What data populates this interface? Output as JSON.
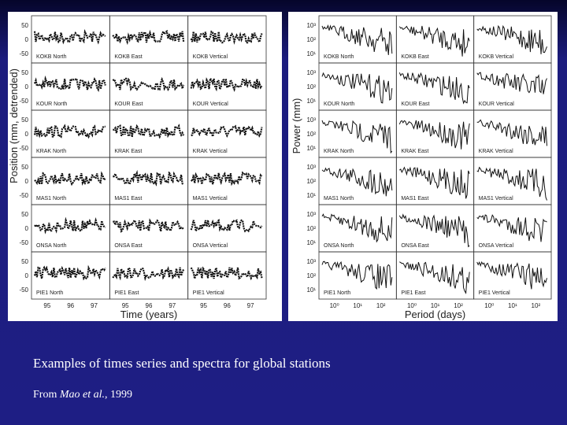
{
  "left_figure": {
    "y_axis_label": "Position (mm, detrended)",
    "x_axis_label": "Time (years)",
    "yticks": [
      "50",
      "0",
      "-50"
    ],
    "xticks": [
      "95",
      "96",
      "97"
    ],
    "panels": [
      [
        "KOKB North",
        "KOKB East",
        "KOKB Vertical"
      ],
      [
        "KOUR North",
        "KOUR East",
        "KOUR Vertical"
      ],
      [
        "KRAK North",
        "KRAK East",
        "KRAK Vertical"
      ],
      [
        "MAS1 North",
        "MAS1 East",
        "MAS1 Vertical"
      ],
      [
        "ONSA North",
        "ONSA East",
        "ONSA Vertical"
      ],
      [
        "PIE1 North",
        "PIE1 East",
        "PIE1 Vertical"
      ]
    ]
  },
  "right_figure": {
    "y_axis_label": "Power (mm)",
    "x_axis_label": "Period (days)",
    "yticks": [
      "10³",
      "10²",
      "10¹"
    ],
    "xticks": [
      "10⁰",
      "10¹",
      "10²"
    ],
    "panels": [
      [
        "KOKB North",
        "KOKB East",
        "KOKB Vertical"
      ],
      [
        "KOUR North",
        "KOUR East",
        "KOUR Vertical"
      ],
      [
        "KRAK North",
        "KRAK East",
        "KRAK Vertical"
      ],
      [
        "MAS1 North",
        "MAS1 East",
        "MAS1 Vertical"
      ],
      [
        "ONSA North",
        "ONSA East",
        "ONSA Vertical"
      ],
      [
        "PIE1 North",
        "PIE1 East",
        "PIE1 Vertical"
      ]
    ]
  },
  "caption": "Examples of times series and spectra for global stations",
  "citation": {
    "prefix": "From ",
    "authors": "Mao et al.",
    "suffix": ", 1999"
  }
}
